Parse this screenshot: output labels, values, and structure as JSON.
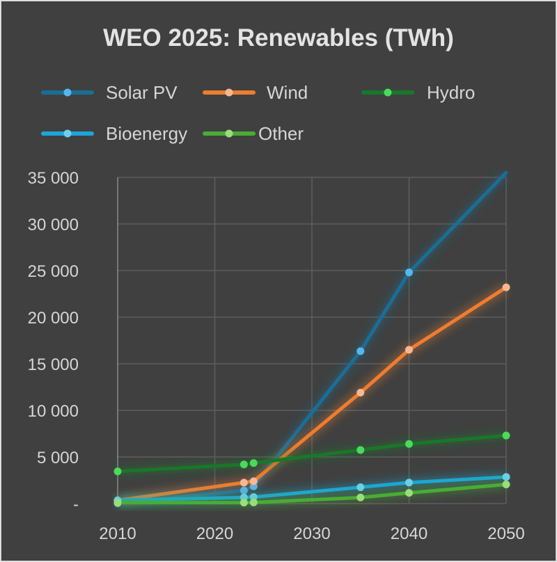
{
  "chart_data": {
    "type": "line",
    "title": "WEO 2025: Renewables (TWh)",
    "xlabel": "",
    "ylabel": "",
    "x": [
      2010,
      2023,
      2024,
      2035,
      2040,
      2050
    ],
    "xlim": [
      2010,
      2050
    ],
    "ylim": [
      0,
      35000
    ],
    "x_ticks": [
      "2010",
      "2020",
      "2030",
      "2040",
      "2050"
    ],
    "x_tick_values": [
      2010,
      2020,
      2030,
      2040,
      2050
    ],
    "y_ticks": [
      "-",
      "5 000",
      "10 000",
      "15 000",
      "20 000",
      "25 000",
      "30 000",
      "35 000"
    ],
    "y_tick_values": [
      0,
      5000,
      10000,
      15000,
      20000,
      25000,
      30000,
      35000
    ],
    "grid": true,
    "legend_position": "top",
    "series": [
      {
        "name": "Solar PV",
        "color": "#1a6e96",
        "marker_color": "#55b8ec",
        "values": [
          30,
          1400,
          1850,
          16350,
          24800,
          35500
        ]
      },
      {
        "name": "Wind",
        "color": "#ed7d31",
        "marker_color": "#f5b894",
        "values": [
          340,
          2250,
          2400,
          11900,
          16500,
          23200
        ]
      },
      {
        "name": "Hydro",
        "color": "#17782a",
        "marker_color": "#4cd95c",
        "values": [
          3450,
          4200,
          4350,
          5750,
          6400,
          7300
        ]
      },
      {
        "name": "Bioenergy",
        "color": "#1aa7d8",
        "marker_color": "#6dd0ee",
        "values": [
          350,
          650,
          700,
          1750,
          2250,
          2850
        ]
      },
      {
        "name": "Other",
        "color": "#4aac34",
        "marker_color": "#9ade7c",
        "values": [
          100,
          100,
          120,
          650,
          1150,
          2050
        ]
      }
    ]
  }
}
